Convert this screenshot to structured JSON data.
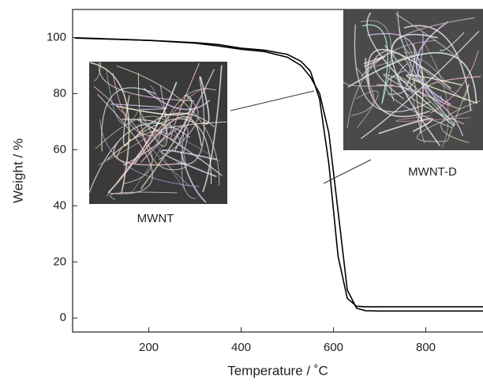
{
  "chart_data": {
    "type": "line",
    "x_label": "Temperature / ˚C",
    "y_label": "Weight / %",
    "x": [
      40,
      100,
      200,
      300,
      350,
      400,
      450,
      500,
      530,
      550,
      570,
      590,
      610,
      630,
      650,
      670,
      700,
      800,
      925
    ],
    "series": [
      {
        "name": "MWNT",
        "color": "#000000",
        "values": [
          99.8,
          99.5,
          99,
          98.2,
          97.5,
          96.2,
          95.5,
          94,
          91.5,
          88,
          78,
          55,
          22,
          7,
          4.2,
          4,
          4,
          4,
          4
        ]
      },
      {
        "name": "MWNT-D",
        "color": "#000000",
        "values": [
          99.9,
          99.6,
          99,
          98,
          97,
          95.8,
          95,
          93,
          90,
          86,
          80,
          66,
          38,
          10,
          3.5,
          2.6,
          2.5,
          2.5,
          2.5
        ]
      }
    ],
    "xlim": [
      35,
      925
    ],
    "ylim": [
      -5,
      110
    ],
    "xticks": [
      200,
      400,
      600,
      800
    ],
    "yticks": [
      0,
      20,
      40,
      60,
      80,
      100
    ]
  }
}
